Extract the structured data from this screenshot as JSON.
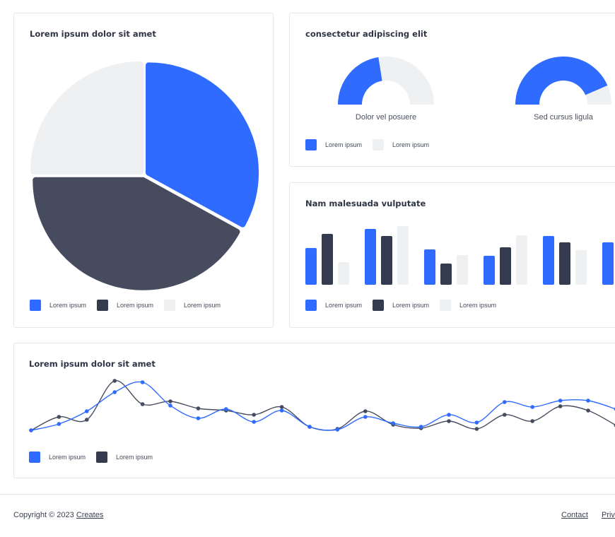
{
  "colors": {
    "blue": "#2f6bff",
    "dark": "#464c5e",
    "darker": "#343b4f",
    "light": "#eef0f2"
  },
  "pie_card": {
    "title": "Lorem ipsum dolor sit amet",
    "legend": [
      "Lorem ipsum",
      "Lorem ipsum",
      "Lorem ipsum"
    ]
  },
  "donut_card": {
    "title": "consectetur adipiscing elit",
    "donut_labels": [
      "Dolor vel posuere",
      "Sed cursus ligula"
    ],
    "legend": [
      "Lorem ipsum",
      "Lorem ipsum"
    ]
  },
  "bar_card": {
    "title": "Nam malesuada vulputate",
    "legend": [
      "Lorem ipsum",
      "Lorem ipsum",
      "Lorem ipsum"
    ]
  },
  "line_card": {
    "title": "Lorem ipsum dolor sit amet",
    "legend": [
      "Lorem ipsum",
      "Lorem ipsum"
    ]
  },
  "footer": {
    "copyright": "Copyright © 2023 ",
    "creates_link": "Creates",
    "contact_link": "Contact",
    "privacy_link": "Privacy"
  },
  "chart_data": [
    {
      "type": "pie",
      "slices": [
        {
          "value": 33,
          "color": "#2f6bff"
        },
        {
          "value": 42,
          "color": "#464c5e"
        },
        {
          "value": 25,
          "color": "#eef0f2"
        }
      ]
    },
    {
      "type": "pie",
      "subtype": "half-donut",
      "gauges": [
        {
          "label": "Dolor vel posuere",
          "value": 0.45
        },
        {
          "label": "Sed cursus ligula",
          "value": 0.87
        }
      ]
    },
    {
      "type": "bar",
      "series": [
        {
          "values": [
            52,
            79,
            50,
            41,
            69,
            60
          ],
          "color": "#2f6bff"
        },
        {
          "values": [
            72,
            69,
            30,
            53,
            60,
            null
          ],
          "color": "#343b4f"
        },
        {
          "values": [
            32,
            83,
            42,
            70,
            49,
            null
          ],
          "color": "#eef0f2"
        }
      ],
      "ylim": [
        0,
        100
      ]
    },
    {
      "type": "line",
      "series": [
        {
          "color": "#2f6bff",
          "values": [
            5,
            14,
            32,
            59,
            73,
            40,
            22,
            35,
            17,
            33,
            10,
            6,
            24,
            15,
            10,
            27,
            16,
            45,
            38,
            47,
            47,
            35
          ]
        },
        {
          "color": "#464c5e",
          "values": [
            5,
            24,
            20,
            75,
            42,
            46,
            36,
            33,
            27,
            38,
            10,
            7,
            32,
            13,
            8,
            18,
            7,
            27,
            18,
            39,
            33,
            12
          ]
        }
      ],
      "ylim": [
        0,
        80
      ]
    }
  ]
}
